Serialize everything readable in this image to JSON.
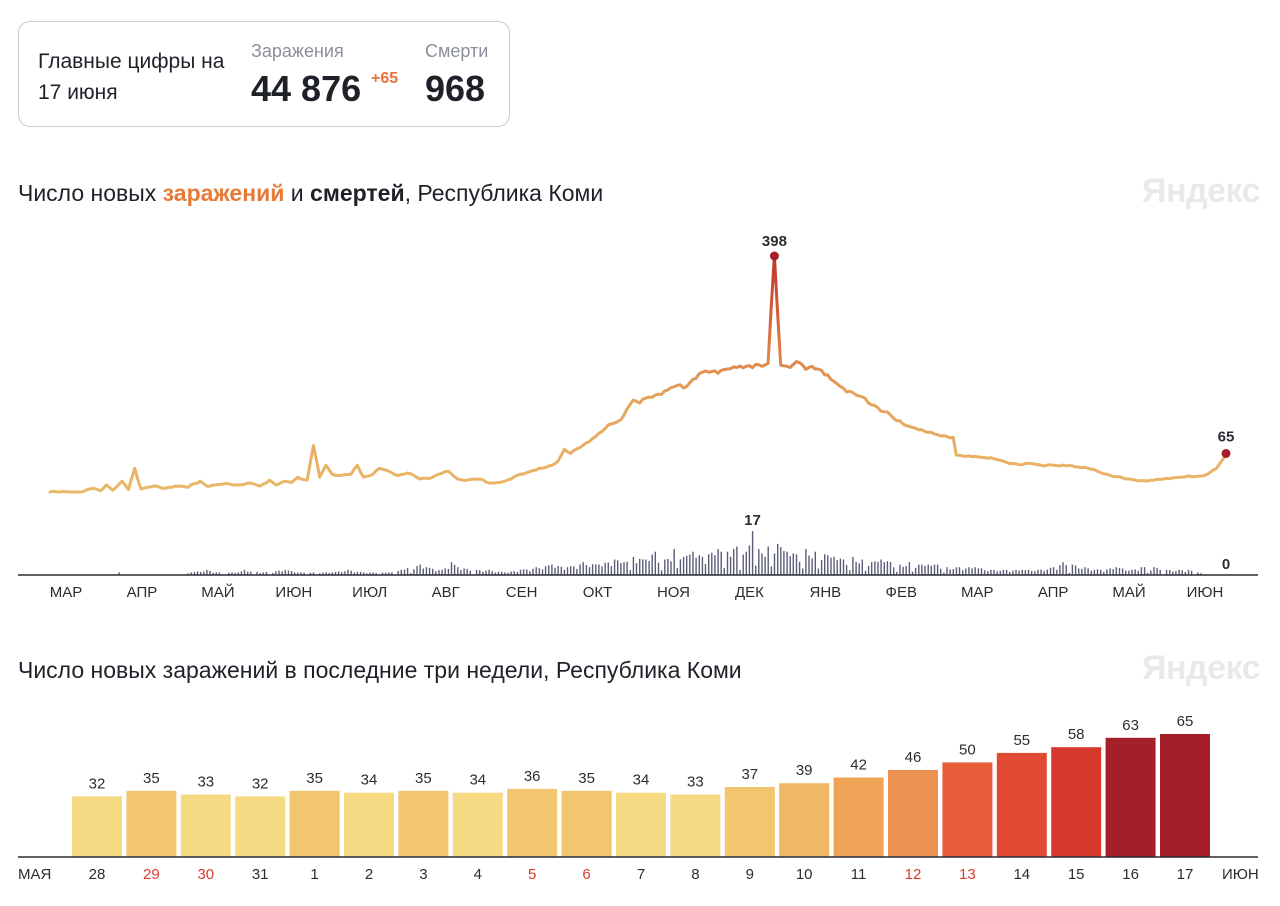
{
  "summary": {
    "title": "Главные цифры на 17 июня",
    "infections_label": "Заражения",
    "infections_value": "44 876",
    "infections_delta": "+65",
    "deaths_label": "Смерти",
    "deaths_value": "968"
  },
  "brand": "Яндекс",
  "chart_data": [
    {
      "type": "line",
      "title_parts": [
        "Число новых ",
        "заражений",
        " и ",
        "смертей",
        ", Республика Коми"
      ],
      "x_months": [
        "МАР",
        "АПР",
        "МАЙ",
        "ИЮН",
        "ИЮЛ",
        "АВГ",
        "СЕН",
        "ОКТ",
        "НОЯ",
        "ДЕК",
        "ЯНВ",
        "ФЕВ",
        "МАР",
        "АПР",
        "МАЙ",
        "ИЮН"
      ],
      "series": [
        {
          "name": "Заражения",
          "peak_value": 398,
          "last_value": 65,
          "anchors": [
            [
              0,
              0
            ],
            [
              10,
              0
            ],
            [
              14,
              6
            ],
            [
              16,
              2
            ],
            [
              18,
              12
            ],
            [
              20,
              3
            ],
            [
              23,
              18
            ],
            [
              25,
              4
            ],
            [
              27,
              40
            ],
            [
              29,
              5
            ],
            [
              33,
              10
            ],
            [
              36,
              6
            ],
            [
              40,
              10
            ],
            [
              44,
              8
            ],
            [
              46,
              14
            ],
            [
              48,
              18
            ],
            [
              50,
              10
            ],
            [
              53,
              12
            ],
            [
              57,
              14
            ],
            [
              60,
              12
            ],
            [
              64,
              15
            ],
            [
              67,
              10
            ],
            [
              70,
              20
            ],
            [
              72,
              12
            ],
            [
              75,
              18
            ],
            [
              77,
              16
            ],
            [
              79,
              25
            ],
            [
              82,
              20
            ],
            [
              84,
              78
            ],
            [
              86,
              25
            ],
            [
              88,
              45
            ],
            [
              90,
              30
            ],
            [
              93,
              28
            ],
            [
              96,
              30
            ],
            [
              98,
              45
            ],
            [
              100,
              25
            ],
            [
              103,
              30
            ],
            [
              105,
              40
            ],
            [
              108,
              35
            ],
            [
              111,
              28
            ],
            [
              114,
              32
            ],
            [
              118,
              22
            ],
            [
              122,
              25
            ],
            [
              124,
              30
            ],
            [
              127,
              35
            ],
            [
              130,
              22
            ],
            [
              133,
              20
            ],
            [
              137,
              22
            ],
            [
              140,
              15
            ],
            [
              143,
              16
            ],
            [
              145,
              18
            ],
            [
              147,
              22
            ],
            [
              150,
              30
            ],
            [
              154,
              36
            ],
            [
              157,
              40
            ],
            [
              160,
              45
            ],
            [
              162,
              52
            ],
            [
              164,
              72
            ],
            [
              166,
              65
            ],
            [
              169,
              75
            ],
            [
              173,
              90
            ],
            [
              176,
              102
            ],
            [
              179,
              115
            ],
            [
              182,
              122
            ],
            [
              184,
              140
            ],
            [
              186,
              155
            ],
            [
              188,
              150
            ],
            [
              191,
              160
            ],
            [
              194,
              165
            ],
            [
              197,
              172
            ],
            [
              200,
              180
            ],
            [
              203,
              178
            ],
            [
              205,
              190
            ],
            [
              208,
              202
            ],
            [
              211,
              203
            ],
            [
              214,
              205
            ],
            [
              217,
              208
            ],
            [
              219,
              210
            ],
            [
              222,
              212
            ],
            [
              225,
              215
            ],
            [
              227,
              212
            ],
            [
              229,
              217
            ],
            [
              231,
              398
            ],
            [
              233,
              214
            ],
            [
              235,
              212
            ],
            [
              237,
              215
            ],
            [
              239,
              218
            ],
            [
              241,
              207
            ],
            [
              243,
              212
            ],
            [
              246,
              205
            ],
            [
              249,
              190
            ],
            [
              252,
              178
            ],
            [
              255,
              170
            ],
            [
              258,
              162
            ],
            [
              261,
              150
            ],
            [
              264,
              142
            ],
            [
              267,
              135
            ],
            [
              270,
              120
            ],
            [
              273,
              112
            ],
            [
              276,
              108
            ],
            [
              279,
              102
            ],
            [
              282,
              98
            ],
            [
              285,
              95
            ],
            [
              288,
              92
            ],
            [
              289,
              62
            ],
            [
              292,
              60
            ],
            [
              295,
              60
            ],
            [
              298,
              58
            ],
            [
              301,
              56
            ],
            [
              304,
              52
            ],
            [
              307,
              48
            ],
            [
              310,
              46
            ],
            [
              313,
              48
            ],
            [
              316,
              45
            ],
            [
              319,
              46
            ],
            [
              322,
              44
            ],
            [
              325,
              45
            ],
            [
              328,
              42
            ],
            [
              331,
              40
            ],
            [
              334,
              35
            ],
            [
              337,
              30
            ],
            [
              340,
              26
            ],
            [
              343,
              22
            ],
            [
              346,
              20
            ],
            [
              349,
              19
            ],
            [
              352,
              20
            ],
            [
              355,
              22
            ],
            [
              358,
              24
            ],
            [
              361,
              25
            ],
            [
              364,
              26
            ],
            [
              367,
              27
            ],
            [
              369,
              30
            ],
            [
              372,
              40
            ],
            [
              374,
              55
            ],
            [
              375,
              65
            ]
          ]
        },
        {
          "name": "Смерти",
          "peak_value": 17,
          "last_value": 0,
          "anchors": [
            [
              0,
              0
            ],
            [
              20,
              0
            ],
            [
              22,
              1
            ],
            [
              24,
              0
            ],
            [
              40,
              0
            ],
            [
              45,
              1
            ],
            [
              50,
              2
            ],
            [
              53,
              1
            ],
            [
              60,
              1
            ],
            [
              62,
              2
            ],
            [
              68,
              1
            ],
            [
              75,
              2
            ],
            [
              80,
              1
            ],
            [
              90,
              1
            ],
            [
              95,
              2
            ],
            [
              100,
              1
            ],
            [
              108,
              1
            ],
            [
              112,
              2
            ],
            [
              118,
              4
            ],
            [
              120,
              3
            ],
            [
              125,
              2
            ],
            [
              128,
              5
            ],
            [
              130,
              3
            ],
            [
              136,
              2
            ],
            [
              140,
              2
            ],
            [
              145,
              1
            ],
            [
              150,
              2
            ],
            [
              155,
              3
            ],
            [
              160,
              4
            ],
            [
              165,
              3
            ],
            [
              170,
              5
            ],
            [
              175,
              4
            ],
            [
              180,
              6
            ],
            [
              183,
              5
            ],
            [
              186,
              7
            ],
            [
              190,
              6
            ],
            [
              193,
              9
            ],
            [
              196,
              6
            ],
            [
              199,
              10
            ],
            [
              202,
              7
            ],
            [
              205,
              9
            ],
            [
              208,
              7
            ],
            [
              210,
              8
            ],
            [
              213,
              10
            ],
            [
              216,
              9
            ],
            [
              219,
              11
            ],
            [
              222,
              9
            ],
            [
              224,
              17
            ],
            [
              226,
              10
            ],
            [
              229,
              11
            ],
            [
              232,
              12
            ],
            [
              235,
              9
            ],
            [
              238,
              8
            ],
            [
              241,
              10
            ],
            [
              244,
              9
            ],
            [
              247,
              8
            ],
            [
              250,
              7
            ],
            [
              253,
              6
            ],
            [
              256,
              7
            ],
            [
              259,
              6
            ],
            [
              262,
              5
            ],
            [
              265,
              6
            ],
            [
              268,
              5
            ],
            [
              271,
              4
            ],
            [
              274,
              5
            ],
            [
              277,
              4
            ],
            [
              280,
              4
            ],
            [
              283,
              4
            ],
            [
              286,
              3
            ],
            [
              290,
              3
            ],
            [
              295,
              3
            ],
            [
              300,
              2
            ],
            [
              305,
              2
            ],
            [
              310,
              2
            ],
            [
              315,
              2
            ],
            [
              320,
              3
            ],
            [
              323,
              5
            ],
            [
              326,
              4
            ],
            [
              330,
              3
            ],
            [
              335,
              2
            ],
            [
              340,
              3
            ],
            [
              345,
              2
            ],
            [
              348,
              3
            ],
            [
              352,
              3
            ],
            [
              356,
              2
            ],
            [
              360,
              2
            ],
            [
              363,
              2
            ],
            [
              366,
              1
            ],
            [
              370,
              0
            ],
            [
              375,
              0
            ]
          ]
        }
      ],
      "annotations": {
        "peak_infections": "398",
        "last_infections": "65",
        "peak_deaths": "17",
        "last_deaths": "0"
      }
    },
    {
      "type": "bar",
      "title": "Число новых заражений в последние три недели, Республика Коми",
      "left_month": "МАЯ",
      "right_month": "ИЮН",
      "categories": [
        "28",
        "29",
        "30",
        "31",
        "1",
        "2",
        "3",
        "4",
        "5",
        "6",
        "7",
        "8",
        "9",
        "10",
        "11",
        "12",
        "13",
        "14",
        "15",
        "16",
        "17"
      ],
      "values": [
        32,
        35,
        33,
        32,
        35,
        34,
        35,
        34,
        36,
        35,
        34,
        33,
        37,
        39,
        42,
        46,
        50,
        55,
        58,
        63,
        65
      ],
      "weekend": [
        false,
        true,
        true,
        false,
        false,
        false,
        false,
        false,
        true,
        true,
        false,
        false,
        false,
        false,
        false,
        true,
        true,
        false,
        false,
        false,
        false
      ],
      "colors": [
        "#f5d983",
        "#f2c56f",
        "#f5d983",
        "#f5d983",
        "#f2c56f",
        "#f5d983",
        "#f2c56f",
        "#f5d983",
        "#f2c56f",
        "#f2c56f",
        "#f5d983",
        "#f5d983",
        "#f2c56f",
        "#f0b866",
        "#eea356",
        "#ec9150",
        "#e85e3a",
        "#e04a33",
        "#d6382c",
        "#a41f2a",
        "#a41f2a"
      ]
    }
  ]
}
